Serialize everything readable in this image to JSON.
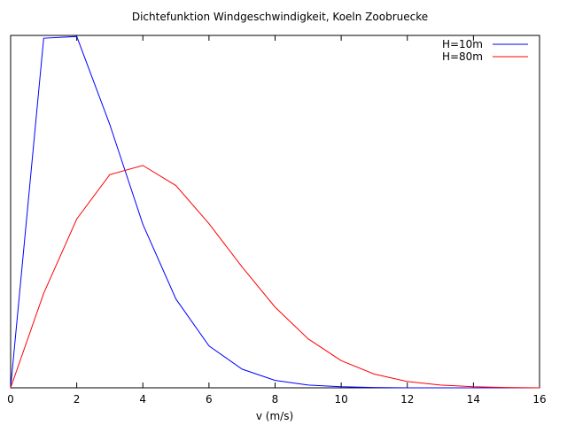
{
  "chart_data": {
    "type": "line",
    "title": "Dichtefunktion Windgeschwindigkeit, Koeln Zoobruecke",
    "xlabel": "v (m/s)",
    "ylabel": "",
    "xlim": [
      0,
      16
    ],
    "ylim": [
      0,
      1
    ],
    "x_ticks": [
      0,
      2,
      4,
      6,
      8,
      10,
      12,
      14,
      16
    ],
    "x_tick_labels": [
      "0",
      "2",
      "4",
      "6",
      "8",
      "10",
      "12",
      "14",
      "16"
    ],
    "y_tick_labels_shown": false,
    "grid": false,
    "legend_position": "top-right",
    "series": [
      {
        "name": "H=10m",
        "color": "#0000ff",
        "x": [
          0,
          1,
          2,
          3,
          4,
          5,
          6,
          7,
          8,
          9,
          10,
          11,
          12,
          13,
          14,
          15,
          16
        ],
        "values": [
          0,
          0.992,
          0.997,
          0.747,
          0.464,
          0.252,
          0.119,
          0.053,
          0.021,
          0.008,
          0.003,
          0.001,
          0,
          0,
          0,
          0,
          0
        ]
      },
      {
        "name": "H=80m",
        "color": "#ff0000",
        "x": [
          0,
          1,
          2,
          3,
          4,
          5,
          6,
          7,
          8,
          9,
          10,
          11,
          12,
          13,
          14,
          15,
          16
        ],
        "values": [
          0,
          0.268,
          0.479,
          0.605,
          0.631,
          0.574,
          0.466,
          0.343,
          0.229,
          0.139,
          0.077,
          0.039,
          0.018,
          0.008,
          0.003,
          0.001,
          0
        ]
      }
    ]
  }
}
